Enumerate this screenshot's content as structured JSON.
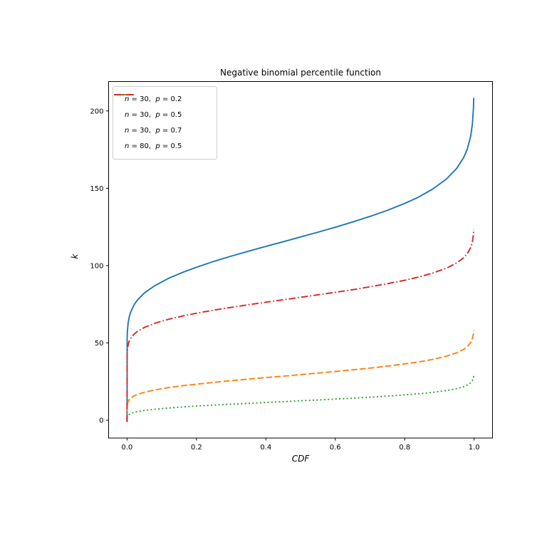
{
  "figure": {
    "background": "#ffffff",
    "spine_color": "#000000"
  },
  "chart_data": {
    "type": "line",
    "title": "Negative binomial percentile function",
    "xlabel": "CDF",
    "ylabel": "k",
    "xlim": [
      -0.053,
      1.053
    ],
    "ylim": [
      -11.5,
      219
    ],
    "xticks": [
      0.0,
      0.2,
      0.4,
      0.6,
      0.8,
      1.0
    ],
    "xtick_labels": [
      "0.0",
      "0.2",
      "0.4",
      "0.6",
      "0.8",
      "1.0"
    ],
    "yticks": [
      0,
      50,
      100,
      150,
      200
    ],
    "ytick_labels": [
      "0",
      "50",
      "100",
      "150",
      "200"
    ],
    "grid": false,
    "legend_position": "upper left",
    "series": [
      {
        "name": "n = 30,  p = 0.2",
        "n": 30,
        "p": 0.2,
        "color": "#1f77b4",
        "linestyle": "solid",
        "points": [
          [
            0,
            -1
          ],
          [
            0.0005,
            54.1
          ],
          [
            0.001,
            57.1
          ],
          [
            0.003,
            62.5
          ],
          [
            0.006,
            66.4
          ],
          [
            0.01,
            69.6
          ],
          [
            0.02,
            74.5
          ],
          [
            0.03,
            77.7
          ],
          [
            0.05,
            82.3
          ],
          [
            0.08,
            87
          ],
          [
            0.12,
            91.8
          ],
          [
            0.16,
            95.6
          ],
          [
            0.2,
            98.9
          ],
          [
            0.25,
            102.7
          ],
          [
            0.3,
            106.1
          ],
          [
            0.35,
            109.3
          ],
          [
            0.4,
            112.4
          ],
          [
            0.45,
            115.4
          ],
          [
            0.5,
            118.5
          ],
          [
            0.55,
            121.6
          ],
          [
            0.6,
            124.8
          ],
          [
            0.65,
            128.2
          ],
          [
            0.7,
            131.8
          ],
          [
            0.75,
            135.7
          ],
          [
            0.8,
            140.2
          ],
          [
            0.84,
            144.3
          ],
          [
            0.88,
            149.4
          ],
          [
            0.92,
            155.9
          ],
          [
            0.95,
            162.9
          ],
          [
            0.97,
            169.9
          ],
          [
            0.98,
            175.1
          ],
          [
            0.99,
            183.6
          ],
          [
            0.995,
            191.5
          ],
          [
            0.998,
            201.4
          ],
          [
            0.999,
            208.5
          ]
        ]
      },
      {
        "name": "n = 30,  p = 0.5",
        "n": 30,
        "p": 0.5,
        "color": "#ff7f0e",
        "linestyle": "dashed",
        "points": [
          [
            0,
            -1
          ],
          [
            0.0005,
            9.4
          ],
          [
            0.001,
            10.3
          ],
          [
            0.003,
            12
          ],
          [
            0.006,
            13.2
          ],
          [
            0.01,
            14.2
          ],
          [
            0.02,
            15.7
          ],
          [
            0.03,
            16.7
          ],
          [
            0.05,
            18.1
          ],
          [
            0.08,
            19.6
          ],
          [
            0.12,
            21.1
          ],
          [
            0.16,
            22.3
          ],
          [
            0.2,
            23.3
          ],
          [
            0.25,
            24.5
          ],
          [
            0.3,
            25.6
          ],
          [
            0.35,
            26.6
          ],
          [
            0.4,
            27.6
          ],
          [
            0.45,
            28.5
          ],
          [
            0.5,
            29.5
          ],
          [
            0.55,
            30.5
          ],
          [
            0.6,
            31.5
          ],
          [
            0.65,
            32.6
          ],
          [
            0.7,
            33.7
          ],
          [
            0.75,
            35
          ],
          [
            0.8,
            36.4
          ],
          [
            0.84,
            37.7
          ],
          [
            0.88,
            39.3
          ],
          [
            0.92,
            41.4
          ],
          [
            0.95,
            43.6
          ],
          [
            0.97,
            45.8
          ],
          [
            0.98,
            47.5
          ],
          [
            0.99,
            50.2
          ],
          [
            0.995,
            52.8
          ],
          [
            0.998,
            55.9
          ],
          [
            0.999,
            58.2
          ]
        ]
      },
      {
        "name": "n = 30,  p = 0.7",
        "n": 30,
        "p": 0.7,
        "color": "#2ca02c",
        "linestyle": "dotted",
        "points": [
          [
            0,
            -1
          ],
          [
            0.0005,
            1.8
          ],
          [
            0.001,
            2.3
          ],
          [
            0.003,
            3.1
          ],
          [
            0.006,
            3.7
          ],
          [
            0.01,
            4.3
          ],
          [
            0.02,
            5.1
          ],
          [
            0.03,
            5.6
          ],
          [
            0.05,
            6.3
          ],
          [
            0.08,
            7.1
          ],
          [
            0.12,
            7.9
          ],
          [
            0.16,
            8.6
          ],
          [
            0.2,
            9.2
          ],
          [
            0.25,
            9.8
          ],
          [
            0.3,
            10.4
          ],
          [
            0.35,
            10.9
          ],
          [
            0.4,
            11.5
          ],
          [
            0.45,
            12
          ],
          [
            0.5,
            12.6
          ],
          [
            0.55,
            13.1
          ],
          [
            0.6,
            13.7
          ],
          [
            0.65,
            14.2
          ],
          [
            0.7,
            14.9
          ],
          [
            0.75,
            15.6
          ],
          [
            0.8,
            16.4
          ],
          [
            0.84,
            17.1
          ],
          [
            0.88,
            18
          ],
          [
            0.92,
            19.2
          ],
          [
            0.95,
            20.4
          ],
          [
            0.97,
            21.7
          ],
          [
            0.98,
            22.7
          ],
          [
            0.99,
            24.2
          ],
          [
            0.995,
            25.6
          ],
          [
            0.998,
            27.5
          ],
          [
            0.999,
            28.8
          ]
        ]
      },
      {
        "name": "n = 80,  p = 0.5",
        "n": 80,
        "p": 0.5,
        "color": "#d62728",
        "linestyle": "dashdot",
        "points": [
          [
            0,
            -1
          ],
          [
            0.0005,
            43.3
          ],
          [
            0.001,
            45.2
          ],
          [
            0.003,
            48.5
          ],
          [
            0.006,
            50.9
          ],
          [
            0.01,
            52.8
          ],
          [
            0.02,
            55.6
          ],
          [
            0.03,
            57.5
          ],
          [
            0.05,
            60
          ],
          [
            0.08,
            62.7
          ],
          [
            0.12,
            65.3
          ],
          [
            0.16,
            67.4
          ],
          [
            0.2,
            69.2
          ],
          [
            0.25,
            71.2
          ],
          [
            0.3,
            73
          ],
          [
            0.35,
            74.7
          ],
          [
            0.4,
            76.3
          ],
          [
            0.45,
            77.9
          ],
          [
            0.5,
            79.5
          ],
          [
            0.55,
            81.1
          ],
          [
            0.6,
            82.7
          ],
          [
            0.65,
            84.4
          ],
          [
            0.7,
            86.3
          ],
          [
            0.75,
            88.3
          ],
          [
            0.8,
            90.5
          ],
          [
            0.84,
            92.6
          ],
          [
            0.88,
            95.1
          ],
          [
            0.92,
            98.3
          ],
          [
            0.95,
            101.7
          ],
          [
            0.97,
            105.1
          ],
          [
            0.98,
            107.6
          ],
          [
            0.99,
            111.6
          ],
          [
            0.995,
            115.4
          ],
          [
            0.998,
            120
          ],
          [
            0.999,
            123.4
          ]
        ]
      }
    ]
  }
}
